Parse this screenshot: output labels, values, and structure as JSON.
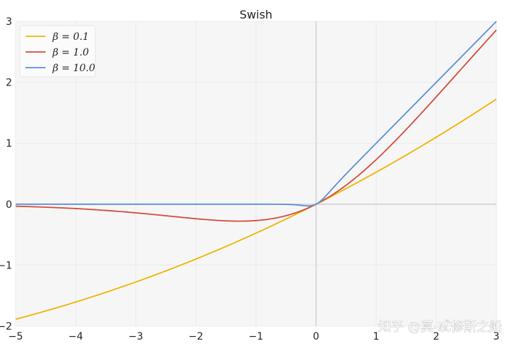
{
  "chart_data": {
    "type": "line",
    "title": "Swish",
    "xlabel": "",
    "ylabel": "",
    "xlim": [
      -5,
      3
    ],
    "ylim": [
      -2,
      3
    ],
    "x_ticks": [
      -5,
      -4,
      -3,
      -2,
      -1,
      0,
      1,
      2,
      3
    ],
    "y_ticks": [
      -2,
      -1,
      0,
      1,
      2,
      3
    ],
    "x_tick_labels": [
      "−5",
      "−4",
      "−3",
      "−2",
      "−1",
      "0",
      "1",
      "2",
      "3"
    ],
    "y_tick_labels": [
      "−2",
      "−1",
      "0",
      "1",
      "2",
      "3"
    ],
    "grid": true,
    "legend_position": "top-left",
    "series": [
      {
        "name": "β = 0.1",
        "beta": 0.1,
        "color": "#f0b400"
      },
      {
        "name": "β = 1.0",
        "beta": 1.0,
        "color": "#d44c3c"
      },
      {
        "name": "β = 10.0",
        "beta": 10.0,
        "color": "#5b8fd9"
      }
    ]
  },
  "watermark": "知乎 @莫-忒修斯之船"
}
